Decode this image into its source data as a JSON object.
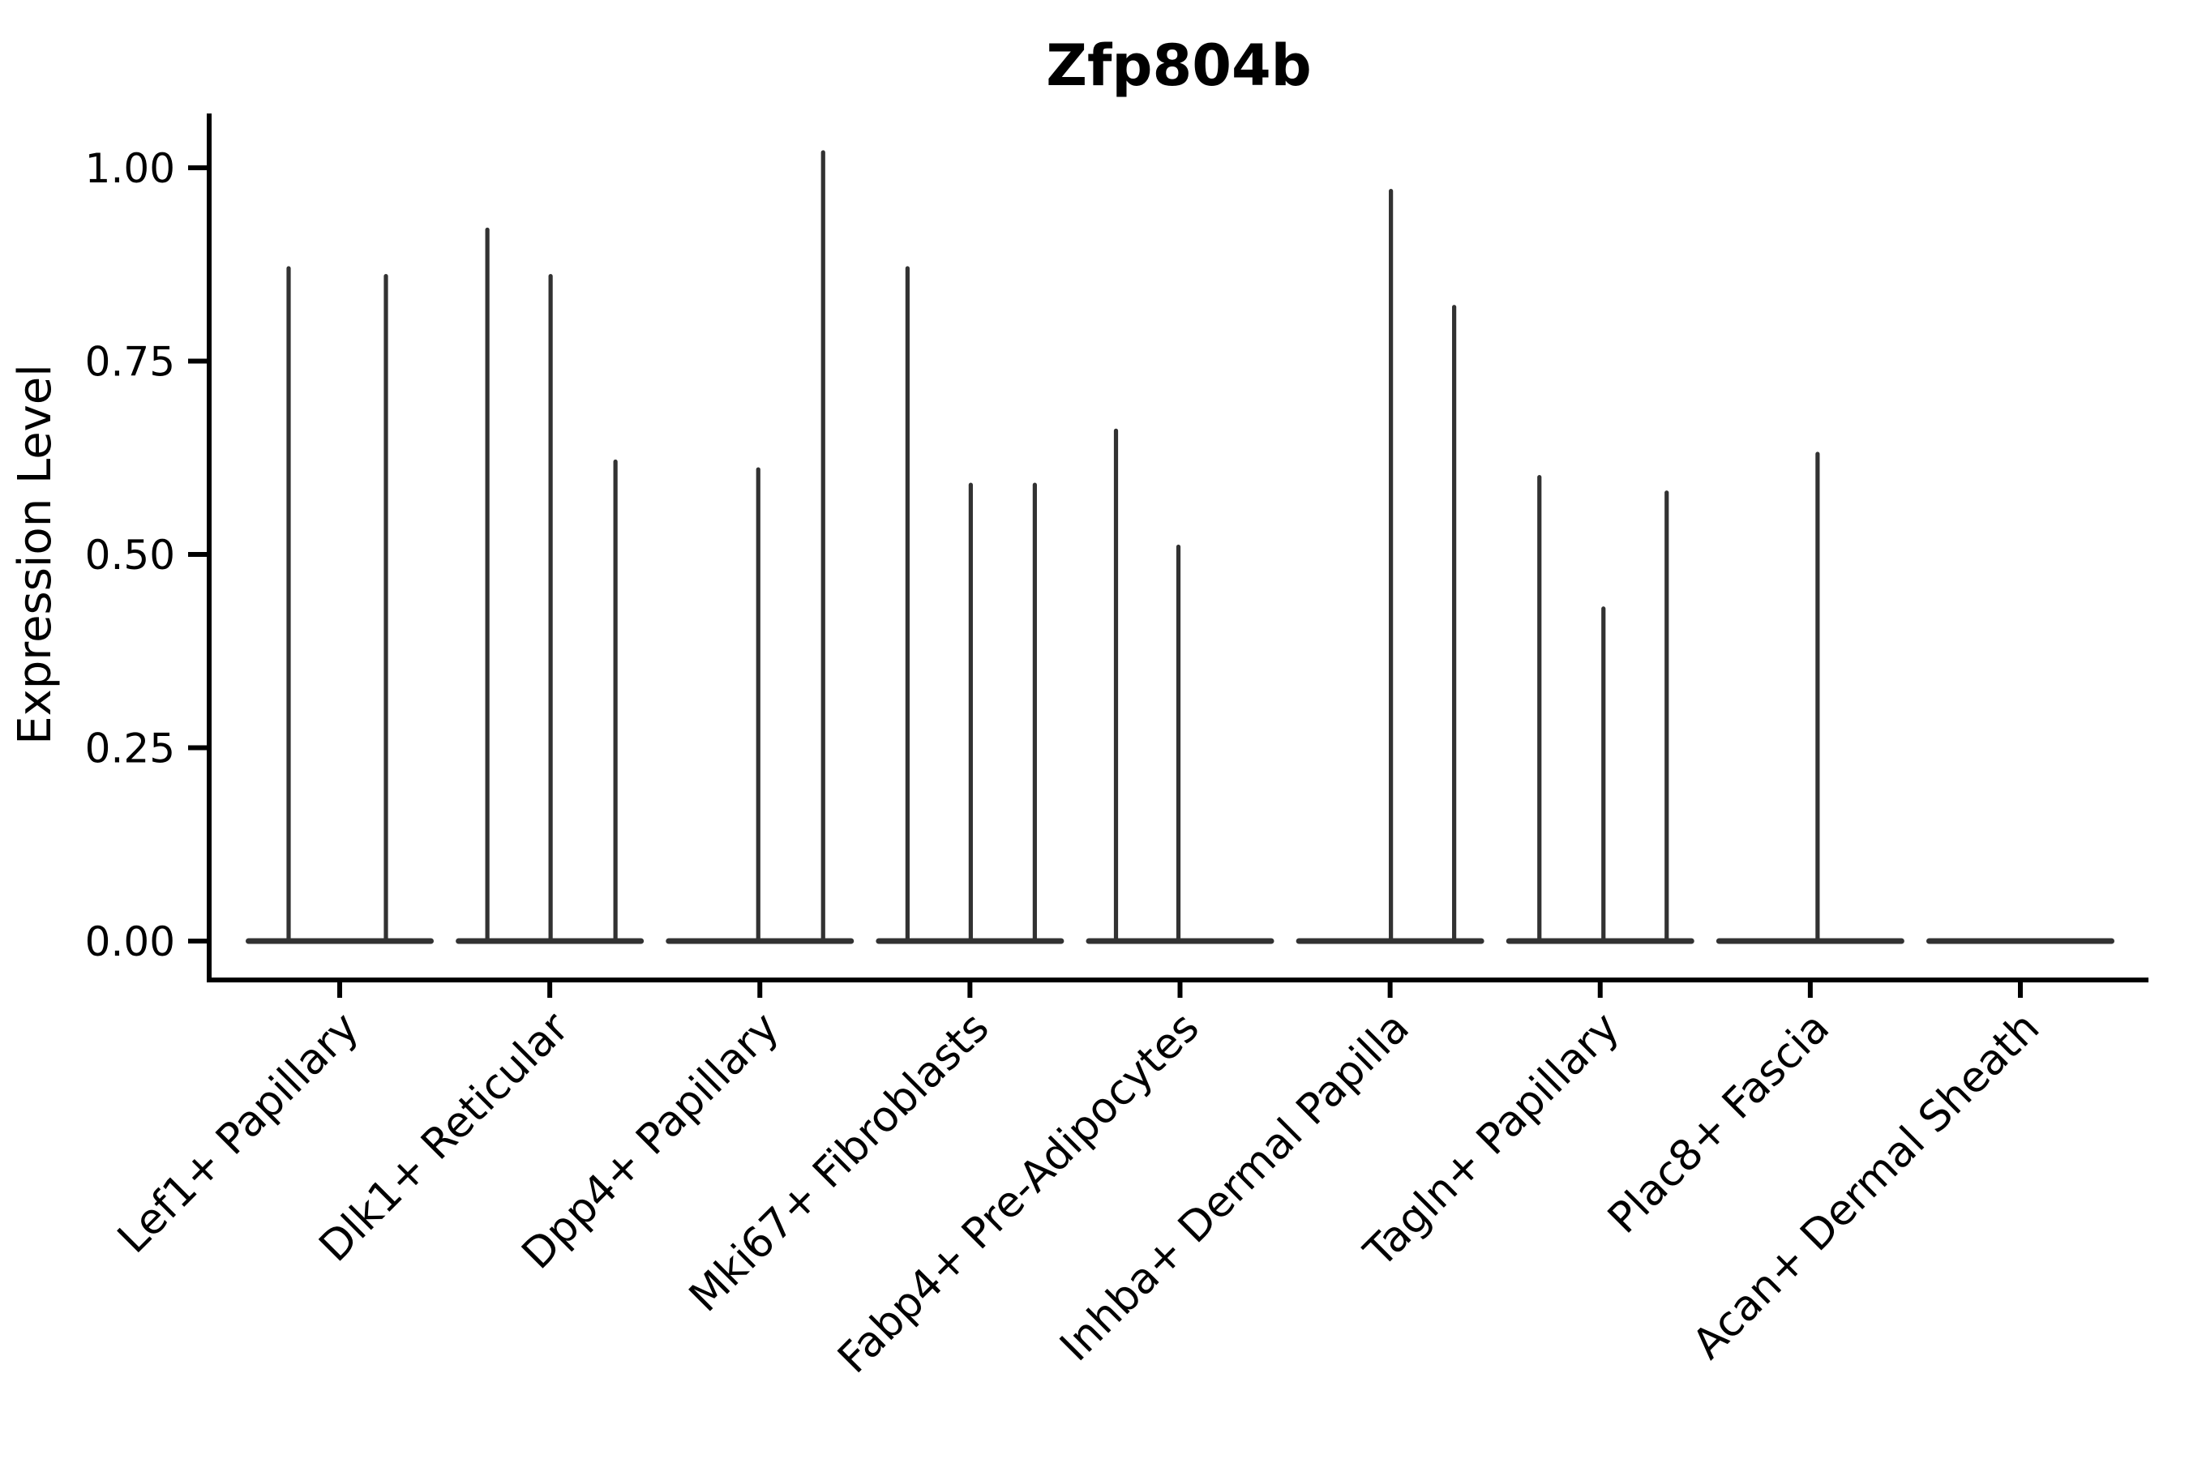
{
  "chart_data": {
    "type": "violin",
    "title": "Zfp804b",
    "xlabel": "",
    "ylabel": "Expression Level",
    "ytick_values": [
      0,
      0.25,
      0.5,
      0.75,
      1.0
    ],
    "ytick_labels": [
      "0.00",
      "0.25",
      "0.50",
      "0.75",
      "1.00"
    ],
    "ylim": [
      -0.05,
      1.065
    ],
    "grid": false,
    "legend": false,
    "categories": [
      "Lef1+ Papillary",
      "Dlk1+ Reticular",
      "Dpp4+ Papillary",
      "Mki67+ Fibroblasts",
      "Fabp4+ Pre-Adipocytes",
      "Inhba+ Dermal Papilla",
      "Tagln+ Papillary",
      "Plac8+ Fascia",
      "Acan+ Dermal Sheath"
    ],
    "violins": [
      {
        "category": "Lef1+ Papillary",
        "baseline_at_zero": true,
        "spikes": [
          {
            "offset": -63,
            "value": 0.87
          },
          {
            "offset": 57,
            "value": 0.86
          }
        ]
      },
      {
        "category": "Dlk1+ Reticular",
        "baseline_at_zero": true,
        "spikes": [
          {
            "offset": -77,
            "value": 0.92
          },
          {
            "offset": 1,
            "value": 0.86
          },
          {
            "offset": 81,
            "value": 0.62
          }
        ]
      },
      {
        "category": "Dpp4+ Papillary",
        "baseline_at_zero": true,
        "spikes": [
          {
            "offset": -2,
            "value": 0.61
          },
          {
            "offset": 78,
            "value": 1.02
          }
        ]
      },
      {
        "category": "Mki67+ Fibroblasts",
        "baseline_at_zero": true,
        "spikes": [
          {
            "offset": -77,
            "value": 0.87
          },
          {
            "offset": 1,
            "value": 0.59
          },
          {
            "offset": 80,
            "value": 0.59
          }
        ]
      },
      {
        "category": "Fabp4+ Pre-Adipocytes",
        "baseline_at_zero": true,
        "spikes": [
          {
            "offset": -79,
            "value": 0.66
          },
          {
            "offset": -2,
            "value": 0.51
          }
        ]
      },
      {
        "category": "Inhba+ Dermal Papilla",
        "baseline_at_zero": true,
        "spikes": [
          {
            "offset": 1,
            "value": 0.97
          },
          {
            "offset": 79,
            "value": 0.82
          }
        ]
      },
      {
        "category": "Tagln+ Papillary",
        "baseline_at_zero": true,
        "spikes": [
          {
            "offset": -75,
            "value": 0.6
          },
          {
            "offset": 4,
            "value": 0.43
          },
          {
            "offset": 82,
            "value": 0.58
          }
        ]
      },
      {
        "category": "Plac8+ Fascia",
        "baseline_at_zero": true,
        "spikes": [
          {
            "offset": 9,
            "value": 0.63
          }
        ]
      },
      {
        "category": "Acan+ Dermal Sheath",
        "baseline_at_zero": true,
        "spikes": []
      }
    ],
    "colors": {
      "violin_line": "#323232",
      "axis": "#000000",
      "text": "#000000",
      "background": "#ffffff"
    }
  }
}
